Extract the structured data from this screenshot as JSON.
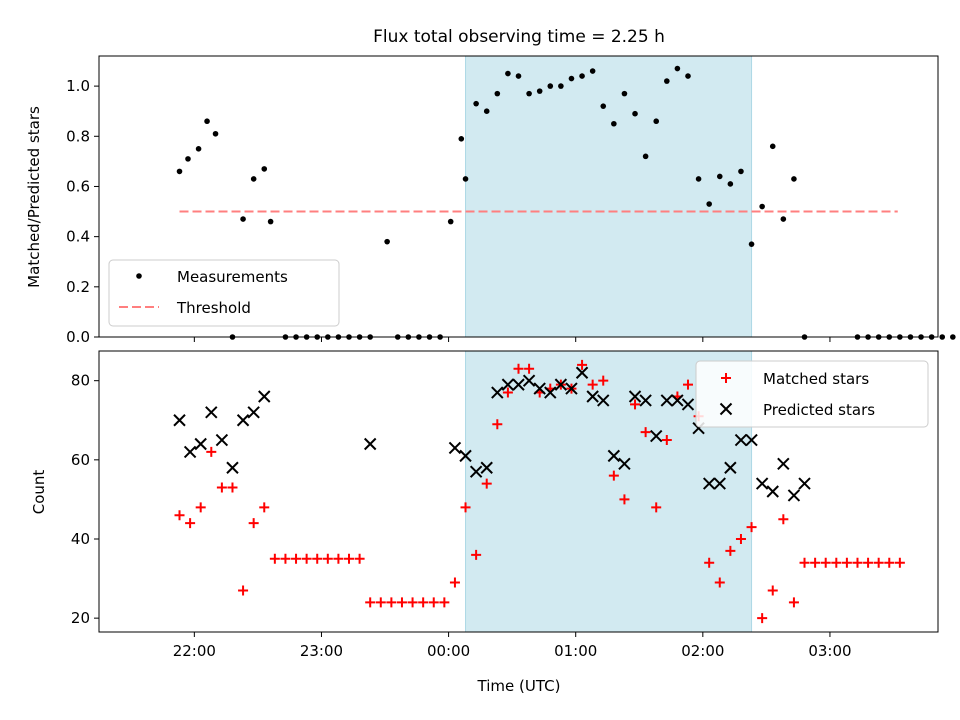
{
  "figure_title": "Flux total observing time = 2.25 h",
  "colors": {
    "shade": "#add8e6",
    "matched": "#ff0000",
    "predicted": "#000000",
    "threshold": "#ff7f7f",
    "measurement": "#000000"
  },
  "chart_data": [
    {
      "type": "scatter",
      "ylabel": "Matched/Predicted stars",
      "ylim": [
        0,
        1.12
      ],
      "xlim": [
        21.25,
        3.85
      ],
      "x_unit": "hours UTC, times after midnight offset by +24",
      "yticks": [
        "0.0",
        "0.2",
        "0.4",
        "0.6",
        "0.8",
        "1.0"
      ],
      "shaded_interval": {
        "start": "00:08",
        "end": "02:23"
      },
      "legend": {
        "position": "lower-left",
        "entries": [
          "Measurements",
          "Threshold"
        ]
      },
      "threshold": {
        "name": "Threshold",
        "value": 0.5,
        "x_start": "21:53",
        "x_end": "03:32",
        "style": "dashed"
      },
      "series": [
        {
          "name": "Measurements",
          "marker": "dot",
          "x": [
            "21:53",
            "21:57",
            "22:02",
            "22:06",
            "22:10",
            "22:18",
            "22:23",
            "22:28",
            "22:33",
            "22:36",
            "22:43",
            "22:48",
            "22:53",
            "22:58",
            "23:03",
            "23:08",
            "23:13",
            "23:18",
            "23:23",
            "23:31",
            "23:36",
            "23:41",
            "23:46",
            "23:51",
            "23:56",
            "00:01",
            "00:06",
            "00:08",
            "00:13",
            "00:18",
            "00:23",
            "00:28",
            "00:33",
            "00:38",
            "00:43",
            "00:48",
            "00:53",
            "00:58",
            "01:03",
            "01:08",
            "01:13",
            "01:18",
            "01:23",
            "01:28",
            "01:33",
            "01:38",
            "01:43",
            "01:48",
            "01:53",
            "01:58",
            "02:03",
            "02:08",
            "02:13",
            "02:18",
            "02:23",
            "02:28",
            "02:33",
            "02:38",
            "02:43",
            "02:48",
            "03:13",
            "03:18",
            "03:23",
            "03:28",
            "03:33",
            "03:38",
            "03:43",
            "03:48",
            "03:53",
            "03:58",
            "04:03"
          ],
          "y": [
            0.66,
            0.71,
            0.75,
            0.86,
            0.81,
            0.0,
            0.47,
            0.63,
            0.67,
            0.46,
            0.0,
            0.0,
            0.0,
            0.0,
            0.0,
            0.0,
            0.0,
            0.0,
            0.0,
            0.38,
            0.0,
            0.0,
            0.0,
            0.0,
            0.0,
            0.46,
            0.79,
            0.63,
            0.93,
            0.9,
            0.97,
            1.05,
            1.04,
            0.97,
            0.98,
            1.0,
            1.0,
            1.03,
            1.04,
            1.06,
            0.92,
            0.85,
            0.97,
            0.89,
            0.72,
            0.86,
            1.02,
            1.07,
            1.04,
            0.63,
            0.53,
            0.64,
            0.61,
            0.66,
            0.37,
            0.52,
            0.76,
            0.47,
            0.63,
            0.0,
            0.0,
            0.0,
            0.0,
            0.0,
            0.0,
            0.0,
            0.0,
            0.0,
            0.0,
            0.0,
            0.0
          ]
        }
      ]
    },
    {
      "type": "scatter",
      "xlabel": "Time (UTC)",
      "ylabel": "Count",
      "ylim": [
        16.5,
        87.5
      ],
      "xlim": [
        21.25,
        3.85
      ],
      "yticks": [
        "20",
        "40",
        "60",
        "80"
      ],
      "xticks": [
        "22:00",
        "23:00",
        "00:00",
        "01:00",
        "02:00",
        "03:00"
      ],
      "shaded_interval": {
        "start": "00:08",
        "end": "02:23"
      },
      "legend": {
        "position": "upper-right",
        "entries": [
          "Matched stars",
          "Predicted stars"
        ]
      },
      "series": [
        {
          "name": "Matched stars",
          "marker": "plus",
          "x": [
            "21:53",
            "21:58",
            "22:03",
            "22:08",
            "22:13",
            "22:18",
            "22:23",
            "22:28",
            "22:33",
            "22:38",
            "22:43",
            "22:48",
            "22:53",
            "22:58",
            "23:03",
            "23:08",
            "23:13",
            "23:18",
            "23:23",
            "23:28",
            "23:33",
            "23:38",
            "23:43",
            "23:48",
            "23:53",
            "23:58",
            "00:03",
            "00:08",
            "00:13",
            "00:18",
            "00:23",
            "00:28",
            "00:33",
            "00:38",
            "00:43",
            "00:48",
            "00:53",
            "00:58",
            "01:03",
            "01:08",
            "01:13",
            "01:18",
            "01:23",
            "01:28",
            "01:33",
            "01:38",
            "01:43",
            "01:48",
            "01:53",
            "01:58",
            "02:03",
            "02:08",
            "02:13",
            "02:18",
            "02:23",
            "02:28",
            "02:33",
            "02:38",
            "02:43",
            "02:48",
            "02:53",
            "02:58",
            "03:03",
            "03:08",
            "03:13",
            "03:18",
            "03:23",
            "03:28",
            "03:33"
          ],
          "y": [
            46,
            44,
            48,
            62,
            53,
            53,
            27,
            44,
            48,
            35,
            35,
            35,
            35,
            35,
            35,
            35,
            35,
            35,
            24,
            24,
            24,
            24,
            24,
            24,
            24,
            24,
            29,
            48,
            36,
            54,
            69,
            77,
            83,
            83,
            77,
            78,
            79,
            78,
            84,
            79,
            80,
            56,
            50,
            74,
            67,
            48,
            65,
            76,
            79,
            71,
            34,
            29,
            37,
            40,
            43,
            20,
            27,
            45,
            24,
            34,
            34,
            34,
            34,
            34,
            34,
            34,
            34,
            34,
            34
          ]
        },
        {
          "name": "Predicted stars",
          "marker": "x",
          "x": [
            "21:53",
            "21:58",
            "22:03",
            "22:08",
            "22:13",
            "22:18",
            "22:23",
            "22:28",
            "22:33",
            "23:23",
            "00:03",
            "00:08",
            "00:13",
            "00:18",
            "00:23",
            "00:28",
            "00:33",
            "00:38",
            "00:43",
            "00:48",
            "00:53",
            "00:58",
            "01:03",
            "01:08",
            "01:13",
            "01:18",
            "01:23",
            "01:28",
            "01:33",
            "01:38",
            "01:43",
            "01:48",
            "01:53",
            "01:58",
            "02:03",
            "02:08",
            "02:13",
            "02:18",
            "02:23",
            "02:28",
            "02:33",
            "02:38",
            "02:43",
            "02:48"
          ],
          "y": [
            70,
            62,
            64,
            72,
            65,
            58,
            70,
            72,
            76,
            64,
            63,
            61,
            57,
            58,
            77,
            79,
            79,
            80,
            78,
            77,
            79,
            78,
            82,
            76,
            75,
            61,
            59,
            76,
            75,
            66,
            75,
            75,
            74,
            68,
            54,
            54,
            58,
            65,
            65,
            54,
            52,
            59,
            51,
            54
          ]
        }
      ]
    }
  ]
}
